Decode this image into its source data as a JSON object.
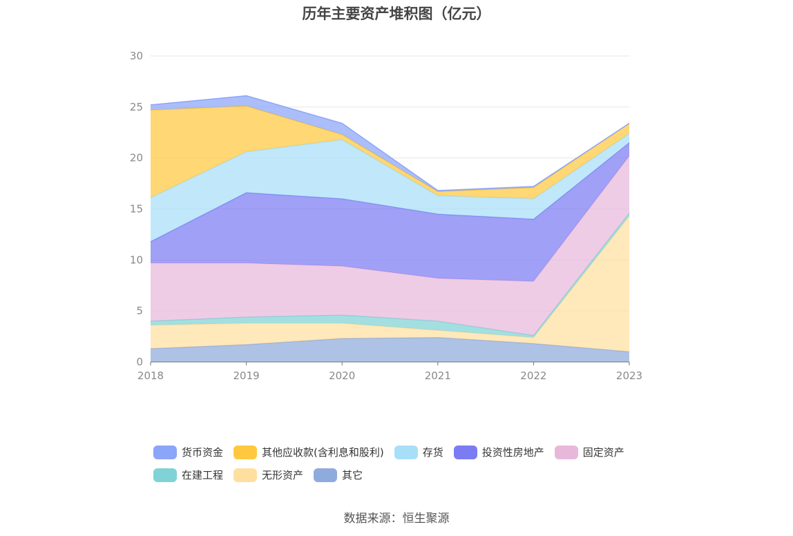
{
  "chart_data": {
    "type": "area",
    "stacked": true,
    "title": "历年主要资产堆积图（亿元）",
    "x": [
      "2018",
      "2019",
      "2020",
      "2021",
      "2022",
      "2023"
    ],
    "ylim": [
      0,
      30
    ],
    "yticks": [
      "0",
      "5",
      "10",
      "15",
      "20",
      "25",
      "30"
    ],
    "grid": true,
    "legend_position": "bottom",
    "series": [
      {
        "name": "其它",
        "color": "#8FAADC",
        "values": [
          1.3,
          1.7,
          2.3,
          2.4,
          1.8,
          1.0
        ]
      },
      {
        "name": "无形资产",
        "color": "#FFDFA0",
        "values": [
          2.3,
          2.1,
          1.5,
          0.7,
          0.6,
          13.3
        ]
      },
      {
        "name": "在建工程",
        "color": "#7FD3D6",
        "values": [
          0.4,
          0.6,
          0.8,
          0.9,
          0.2,
          0.3
        ]
      },
      {
        "name": "固定资产",
        "color": "#E8B8DB",
        "values": [
          5.7,
          5.3,
          4.8,
          4.2,
          5.3,
          5.6
        ]
      },
      {
        "name": "投资性房地产",
        "color": "#7B7CF2",
        "values": [
          2.1,
          6.9,
          6.6,
          6.3,
          6.1,
          1.3
        ]
      },
      {
        "name": "存货",
        "color": "#A8DFF8",
        "values": [
          4.3,
          4.0,
          5.8,
          1.8,
          2.0,
          0.9
        ]
      },
      {
        "name": "其他应收款(含利息和股利)",
        "color": "#FFC83F",
        "values": [
          8.6,
          4.5,
          0.5,
          0.4,
          1.1,
          1.0
        ]
      },
      {
        "name": "货币资金",
        "color": "#8BA5F8",
        "values": [
          0.5,
          1.0,
          1.1,
          0.1,
          0.1,
          0.0
        ]
      }
    ],
    "legend_order": [
      "货币资金",
      "其他应收款(含利息和股利)",
      "存货",
      "投资性房地产",
      "固定资产",
      "在建工程",
      "无形资产",
      "其它"
    ]
  },
  "source": "数据来源：恒生聚源"
}
